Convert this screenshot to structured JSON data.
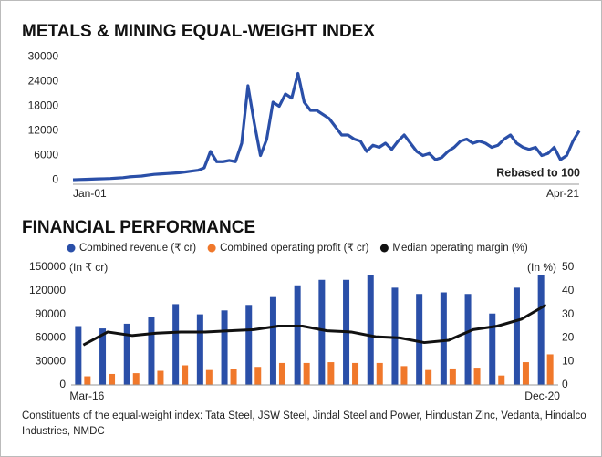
{
  "chart_data": [
    {
      "type": "line",
      "title": "METALS & MINING EQUAL-WEIGHT INDEX",
      "annotation": "Rebased to 100",
      "color": "#2a4fa8",
      "categories": [
        "Jan-01",
        null,
        null,
        null,
        null,
        null,
        null,
        null,
        null,
        null,
        null,
        null,
        null,
        null,
        null,
        null,
        null,
        null,
        null,
        null,
        null,
        null,
        null,
        null,
        null,
        null,
        null,
        null,
        null,
        null,
        null,
        null,
        null,
        null,
        null,
        null,
        null,
        null,
        null,
        null,
        null,
        null,
        null,
        null,
        null,
        null,
        null,
        null,
        null,
        null,
        null,
        null,
        null,
        null,
        null,
        null,
        null,
        null,
        null,
        null,
        null,
        null,
        null,
        null,
        null,
        null,
        null,
        null,
        null,
        null,
        null,
        null,
        null,
        null,
        null,
        null,
        null,
        null,
        null,
        null,
        null,
        "Apr-21"
      ],
      "values": [
        100,
        150,
        200,
        250,
        300,
        350,
        400,
        500,
        600,
        800,
        900,
        1000,
        1200,
        1400,
        1500,
        1600,
        1700,
        1800,
        2000,
        2200,
        2400,
        3000,
        7000,
        4500,
        4500,
        4800,
        4500,
        9000,
        23000,
        14000,
        6000,
        10000,
        19000,
        18000,
        21000,
        20000,
        26000,
        19000,
        17000,
        17000,
        16000,
        15000,
        13000,
        11000,
        11000,
        10000,
        9500,
        7000,
        8500,
        8000,
        9000,
        7500,
        9500,
        11000,
        9000,
        7000,
        6000,
        6500,
        5000,
        5500,
        7000,
        8000,
        9500,
        10000,
        9000,
        9500,
        9000,
        8000,
        8500,
        10000,
        11000,
        9000,
        8000,
        7500,
        8000,
        6000,
        6500,
        8000,
        5000,
        6000,
        9500,
        12000
      ],
      "ylim": [
        -1000,
        31000
      ],
      "yticks": [
        0,
        6000,
        12000,
        18000,
        24000,
        30000
      ]
    },
    {
      "type": "bar",
      "title": "FINANCIAL PERFORMANCE",
      "y_label": "(In ₹ cr)",
      "y2_label": "(In %)",
      "categories": [
        "Mar-16",
        null,
        null,
        null,
        null,
        null,
        null,
        null,
        null,
        null,
        null,
        null,
        null,
        null,
        null,
        null,
        null,
        null,
        null,
        "Dec-20"
      ],
      "series": [
        {
          "name": "Combined revenue (₹ cr)",
          "color": "#2a4fa8",
          "values": [
            75000,
            72000,
            78000,
            87000,
            103000,
            90000,
            95000,
            102000,
            112000,
            127000,
            134000,
            134000,
            140000,
            124000,
            116000,
            118000,
            116000,
            91000,
            124000,
            140000
          ]
        },
        {
          "name": "Combined operating profit (₹ cr)",
          "color": "#f0782b",
          "values": [
            11000,
            14000,
            15000,
            18000,
            25000,
            19000,
            20000,
            23000,
            28000,
            28000,
            29000,
            28000,
            28000,
            24000,
            19000,
            21000,
            22000,
            12000,
            29000,
            39000
          ]
        },
        {
          "name": "Median operating margin (%)",
          "color": "#111111",
          "type": "line",
          "axis": "y2",
          "values": [
            17,
            22.5,
            21,
            22,
            22.5,
            22.5,
            23,
            23.5,
            25,
            25,
            23,
            22.5,
            20.5,
            20,
            18,
            19,
            23.5,
            25,
            28,
            34
          ]
        }
      ],
      "ylim": [
        0,
        150000
      ],
      "yticks": [
        0,
        30000,
        60000,
        90000,
        120000,
        150000
      ],
      "y2lim": [
        0,
        50
      ],
      "y2ticks": [
        0,
        10,
        20,
        30,
        40,
        50
      ]
    }
  ],
  "footer": {
    "text": "Constituents of the equal-weight index: Tata Steel, JSW Steel, Jindal Steel and Power, Hindustan Zinc, Vedanta, Hindalco Industries, NMDC"
  }
}
